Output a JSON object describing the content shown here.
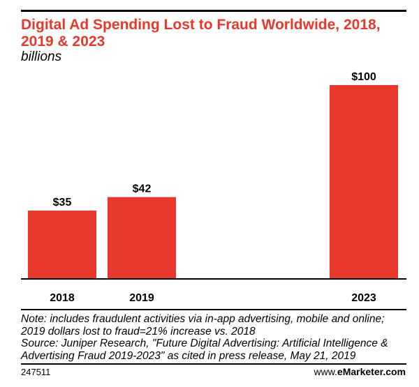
{
  "chart_data": {
    "type": "bar",
    "title": "Digital Ad Spending Lost to Fraud Worldwide, 2018, 2019 & 2023",
    "subtitle": "billions",
    "categories": [
      "2018",
      "2019",
      "2023"
    ],
    "values": [
      35,
      42,
      100
    ],
    "data_labels": [
      "$35",
      "$42",
      "$100"
    ],
    "xlabel": "",
    "ylabel": "",
    "ylim": [
      0,
      100
    ],
    "grid": false,
    "legend": "none",
    "bar_color": "#e8382b"
  },
  "notes": {
    "note": "Note: includes fraudulent activities via in-app advertising, mobile and online; 2019 dollars lost to fraud=21% increase vs. 2018",
    "source": "Source: Juniper Research, \"Future Digital Advertising: Artificial Intelligence & Advertising Fraud 2019-2023\" as cited in press release, May 21, 2019"
  },
  "footer": {
    "chart_id": "247511",
    "brand_domain": "www.",
    "brand_name": "eMarketer",
    "brand_suffix": ".com"
  },
  "colors": {
    "accent": "#e8382b",
    "text": "#000000"
  }
}
